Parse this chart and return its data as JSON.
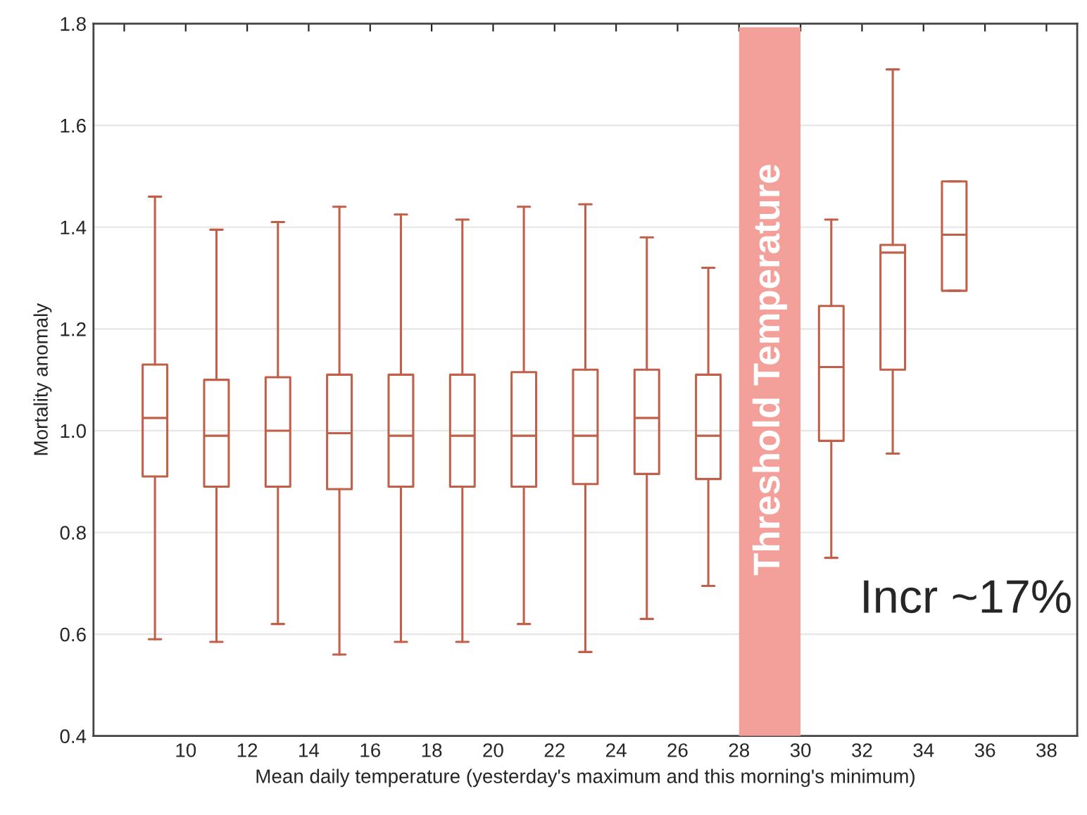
{
  "chart_data": {
    "type": "box",
    "xlabel": "Mean daily temperature (yesterday's maximum and this morning's minimum)",
    "ylabel": "Mortality anomaly",
    "x": [
      9,
      11,
      13,
      15,
      17,
      19,
      21,
      23,
      25,
      27,
      31,
      33,
      35
    ],
    "series": [
      {
        "color": "#c0604a",
        "boxes": [
          {
            "low": 0.59,
            "q1": 0.91,
            "median": 1.025,
            "q3": 1.13,
            "high": 1.46
          },
          {
            "low": 0.585,
            "q1": 0.89,
            "median": 0.99,
            "q3": 1.1,
            "high": 1.395
          },
          {
            "low": 0.62,
            "q1": 0.89,
            "median": 1.0,
            "q3": 1.105,
            "high": 1.41
          },
          {
            "low": 0.56,
            "q1": 0.885,
            "median": 0.995,
            "q3": 1.11,
            "high": 1.44
          },
          {
            "low": 0.585,
            "q1": 0.89,
            "median": 0.99,
            "q3": 1.11,
            "high": 1.425
          },
          {
            "low": 0.585,
            "q1": 0.89,
            "median": 0.99,
            "q3": 1.11,
            "high": 1.415
          },
          {
            "low": 0.62,
            "q1": 0.89,
            "median": 0.99,
            "q3": 1.115,
            "high": 1.44
          },
          {
            "low": 0.565,
            "q1": 0.895,
            "median": 0.99,
            "q3": 1.12,
            "high": 1.445
          },
          {
            "low": 0.63,
            "q1": 0.915,
            "median": 1.025,
            "q3": 1.12,
            "high": 1.38
          },
          {
            "low": 0.695,
            "q1": 0.905,
            "median": 0.99,
            "q3": 1.11,
            "high": 1.32
          },
          {
            "low": 0.75,
            "q1": 0.98,
            "median": 1.125,
            "q3": 1.245,
            "high": 1.415
          },
          {
            "low": 0.955,
            "q1": 1.12,
            "median": 1.35,
            "q3": 1.365,
            "high": 1.71
          },
          {
            "low": 1.275,
            "q1": 1.275,
            "median": 1.385,
            "q3": 1.49,
            "high": 1.49
          }
        ]
      }
    ],
    "bands": [
      {
        "axis": "x",
        "from": 28,
        "to": 30,
        "label": "Threshold Temperature",
        "color": "#f4a09a"
      }
    ],
    "annotations": [
      "Incr ~17%"
    ],
    "xlim": [
      7,
      39
    ],
    "xticks": [
      {
        "value": 8,
        "label": null
      },
      10,
      12,
      14,
      16,
      18,
      20,
      22,
      24,
      26,
      28,
      30,
      32,
      34,
      36,
      38
    ],
    "ylim": [
      0.4,
      1.8
    ],
    "yticks": [
      0.4,
      0.6,
      0.8,
      {
        "value": 1,
        "label": "1.0"
      },
      1.2,
      1.4,
      1.6,
      1.8
    ],
    "grid": "y"
  }
}
